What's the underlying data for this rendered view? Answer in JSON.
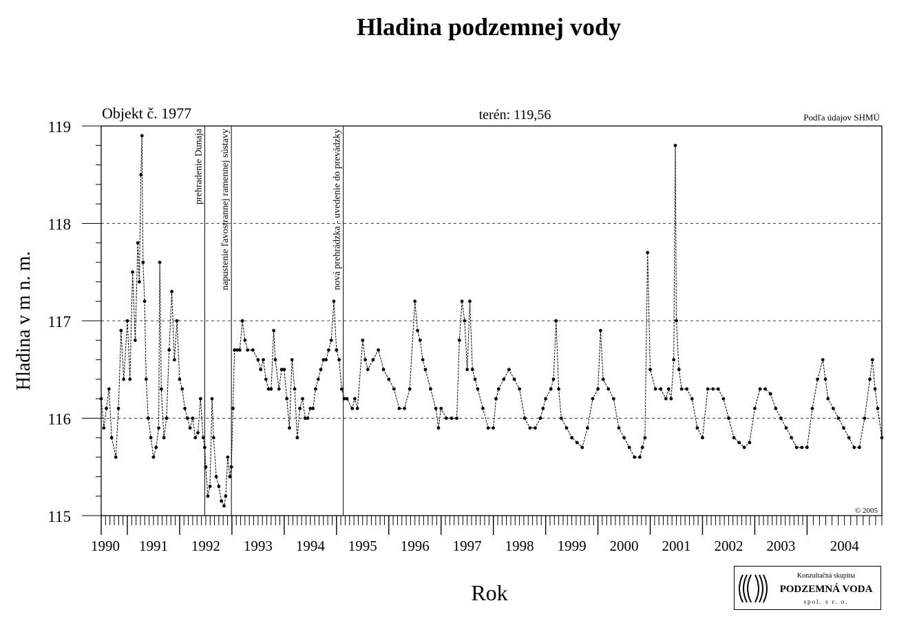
{
  "page": {
    "title": "Hladina podzemnej vody",
    "object_label": "Objekt č. 1977",
    "terrain_label": "terén: 119,56",
    "source_label": "Podľa údajov SHMÚ",
    "copyright": "© 2005",
    "xlabel": "Rok",
    "ylabel": "Hladina v m n. m."
  },
  "logo": {
    "line1": "Konzultačná skupina",
    "name": "PODZEMNÁ VODA",
    "line2": "spol. s r. o.",
    "icon": "logo-swirl-icon"
  },
  "chart_data": {
    "type": "line",
    "title": "Hladina podzemnej vody",
    "xlabel": "Rok",
    "ylabel": "Hladina v m n. m.",
    "xlim": [
      1990.0,
      2004.93
    ],
    "ylim": [
      115,
      119
    ],
    "yticks": [
      115,
      116,
      117,
      118,
      119
    ],
    "grid": "horizontal dashed at 116, 117, 118",
    "legend": "none",
    "series_color": "#000000",
    "year_ticks": [
      {
        "label": "1990",
        "x": 1990.0
      },
      {
        "label": "1991",
        "x": 1990.5
      },
      {
        "label": "1992",
        "x": 1991.5
      },
      {
        "label": "1993",
        "x": 1992.5
      },
      {
        "label": "1994",
        "x": 1993.5
      },
      {
        "label": "1995",
        "x": 1994.5
      },
      {
        "label": "1996",
        "x": 1995.5
      },
      {
        "label": "1997",
        "x": 1996.5
      },
      {
        "label": "1998",
        "x": 1997.5
      },
      {
        "label": "1999",
        "x": 1998.5
      },
      {
        "label": "2000",
        "x": 1999.5
      },
      {
        "label": "2001",
        "x": 2000.5
      },
      {
        "label": "2002",
        "x": 2001.5
      },
      {
        "label": "2003",
        "x": 2002.5
      },
      {
        "label": "2004",
        "x": 2003.5
      }
    ],
    "events": [
      {
        "x": 1991.98,
        "label": "prehradenie Dunaja"
      },
      {
        "x": 1992.49,
        "label": "napustenie ľavostrannej ramennej sústavy"
      },
      {
        "x": 1994.63,
        "label": "nová prehrádzka - uvedenie do prevádzky"
      }
    ],
    "series": [
      {
        "values": [
          [
            1990.0,
            116.2
          ],
          [
            1990.05,
            115.9
          ],
          [
            1990.1,
            116.1
          ],
          [
            1990.15,
            116.3
          ],
          [
            1990.2,
            115.8
          ],
          [
            1990.28,
            115.6
          ],
          [
            1990.33,
            116.1
          ],
          [
            1990.38,
            116.9
          ],
          [
            1990.43,
            116.4
          ],
          [
            1990.5,
            117.0
          ],
          [
            1990.55,
            116.4
          ],
          [
            1990.6,
            117.5
          ],
          [
            1990.65,
            116.8
          ],
          [
            1990.7,
            117.8
          ],
          [
            1990.73,
            117.4
          ],
          [
            1990.76,
            118.5
          ],
          [
            1990.78,
            118.9
          ],
          [
            1990.8,
            117.6
          ],
          [
            1990.83,
            117.2
          ],
          [
            1990.86,
            116.4
          ],
          [
            1990.9,
            116.0
          ],
          [
            1990.95,
            115.8
          ],
          [
            1991.0,
            115.6
          ],
          [
            1991.05,
            115.7
          ],
          [
            1991.1,
            115.9
          ],
          [
            1991.12,
            117.6
          ],
          [
            1991.15,
            116.3
          ],
          [
            1991.2,
            115.8
          ],
          [
            1991.25,
            116.0
          ],
          [
            1991.3,
            116.7
          ],
          [
            1991.35,
            117.3
          ],
          [
            1991.4,
            116.6
          ],
          [
            1991.45,
            117.0
          ],
          [
            1991.5,
            116.4
          ],
          [
            1991.55,
            116.3
          ],
          [
            1991.6,
            116.1
          ],
          [
            1991.65,
            116.0
          ],
          [
            1991.7,
            115.9
          ],
          [
            1991.75,
            116.0
          ],
          [
            1991.8,
            115.8
          ],
          [
            1991.85,
            115.85
          ],
          [
            1991.9,
            116.2
          ],
          [
            1991.95,
            115.8
          ],
          [
            1991.98,
            115.7
          ],
          [
            1992.0,
            115.5
          ],
          [
            1992.04,
            115.2
          ],
          [
            1992.08,
            115.3
          ],
          [
            1992.12,
            116.2
          ],
          [
            1992.15,
            115.8
          ],
          [
            1992.2,
            115.4
          ],
          [
            1992.25,
            115.3
          ],
          [
            1992.3,
            115.15
          ],
          [
            1992.35,
            115.1
          ],
          [
            1992.38,
            115.2
          ],
          [
            1992.42,
            115.6
          ],
          [
            1992.46,
            115.4
          ],
          [
            1992.49,
            115.5
          ],
          [
            1992.52,
            116.1
          ],
          [
            1992.55,
            116.7
          ],
          [
            1992.6,
            116.7
          ],
          [
            1992.65,
            116.7
          ],
          [
            1992.7,
            117.0
          ],
          [
            1992.75,
            116.8
          ],
          [
            1992.8,
            116.7
          ],
          [
            1992.9,
            116.7
          ],
          [
            1993.0,
            116.6
          ],
          [
            1993.05,
            116.5
          ],
          [
            1993.1,
            116.6
          ],
          [
            1993.15,
            116.4
          ],
          [
            1993.2,
            116.3
          ],
          [
            1993.25,
            116.3
          ],
          [
            1993.3,
            116.9
          ],
          [
            1993.33,
            116.6
          ],
          [
            1993.4,
            116.3
          ],
          [
            1993.45,
            116.5
          ],
          [
            1993.5,
            116.5
          ],
          [
            1993.55,
            116.2
          ],
          [
            1993.6,
            115.9
          ],
          [
            1993.65,
            116.6
          ],
          [
            1993.7,
            116.3
          ],
          [
            1993.75,
            115.8
          ],
          [
            1993.8,
            116.1
          ],
          [
            1993.85,
            116.2
          ],
          [
            1993.9,
            116.0
          ],
          [
            1993.95,
            116.0
          ],
          [
            1994.0,
            116.1
          ],
          [
            1994.05,
            116.1
          ],
          [
            1994.1,
            116.3
          ],
          [
            1994.15,
            116.4
          ],
          [
            1994.2,
            116.5
          ],
          [
            1994.25,
            116.6
          ],
          [
            1994.3,
            116.6
          ],
          [
            1994.35,
            116.7
          ],
          [
            1994.4,
            116.8
          ],
          [
            1994.45,
            117.2
          ],
          [
            1994.5,
            116.7
          ],
          [
            1994.55,
            116.6
          ],
          [
            1994.6,
            116.3
          ],
          [
            1994.65,
            116.2
          ],
          [
            1994.7,
            116.2
          ],
          [
            1994.8,
            116.1
          ],
          [
            1994.85,
            116.2
          ],
          [
            1994.9,
            116.1
          ],
          [
            1995.0,
            116.8
          ],
          [
            1995.05,
            116.6
          ],
          [
            1995.1,
            116.5
          ],
          [
            1995.2,
            116.6
          ],
          [
            1995.3,
            116.7
          ],
          [
            1995.4,
            116.5
          ],
          [
            1995.5,
            116.4
          ],
          [
            1995.6,
            116.3
          ],
          [
            1995.7,
            116.1
          ],
          [
            1995.8,
            116.1
          ],
          [
            1995.9,
            116.3
          ],
          [
            1996.0,
            117.2
          ],
          [
            1996.05,
            116.9
          ],
          [
            1996.1,
            116.8
          ],
          [
            1996.15,
            116.6
          ],
          [
            1996.2,
            116.5
          ],
          [
            1996.3,
            116.3
          ],
          [
            1996.4,
            116.1
          ],
          [
            1996.45,
            115.9
          ],
          [
            1996.5,
            116.1
          ],
          [
            1996.6,
            116.0
          ],
          [
            1996.7,
            116.0
          ],
          [
            1996.8,
            116.0
          ],
          [
            1996.85,
            116.8
          ],
          [
            1996.9,
            117.2
          ],
          [
            1996.95,
            117.0
          ],
          [
            1997.0,
            116.5
          ],
          [
            1997.05,
            117.2
          ],
          [
            1997.1,
            116.5
          ],
          [
            1997.15,
            116.4
          ],
          [
            1997.2,
            116.3
          ],
          [
            1997.3,
            116.1
          ],
          [
            1997.4,
            115.9
          ],
          [
            1997.5,
            115.9
          ],
          [
            1997.55,
            116.2
          ],
          [
            1997.6,
            116.3
          ],
          [
            1997.7,
            116.4
          ],
          [
            1997.8,
            116.5
          ],
          [
            1997.9,
            116.4
          ],
          [
            1998.0,
            116.3
          ],
          [
            1998.1,
            116.0
          ],
          [
            1998.2,
            115.9
          ],
          [
            1998.3,
            115.9
          ],
          [
            1998.4,
            116.0
          ],
          [
            1998.45,
            116.1
          ],
          [
            1998.5,
            116.2
          ],
          [
            1998.6,
            116.3
          ],
          [
            1998.65,
            116.4
          ],
          [
            1998.7,
            117.0
          ],
          [
            1998.75,
            116.3
          ],
          [
            1998.8,
            116.0
          ],
          [
            1998.9,
            115.9
          ],
          [
            1999.0,
            115.8
          ],
          [
            1999.1,
            115.75
          ],
          [
            1999.2,
            115.7
          ],
          [
            1999.3,
            115.9
          ],
          [
            1999.4,
            116.2
          ],
          [
            1999.5,
            116.3
          ],
          [
            1999.55,
            116.9
          ],
          [
            1999.6,
            116.4
          ],
          [
            1999.7,
            116.3
          ],
          [
            1999.8,
            116.2
          ],
          [
            1999.9,
            115.9
          ],
          [
            2000.0,
            115.8
          ],
          [
            2000.1,
            115.7
          ],
          [
            2000.2,
            115.6
          ],
          [
            2000.3,
            115.6
          ],
          [
            2000.35,
            115.7
          ],
          [
            2000.4,
            115.8
          ],
          [
            2000.45,
            117.7
          ],
          [
            2000.5,
            116.5
          ],
          [
            2000.6,
            116.3
          ],
          [
            2000.7,
            116.3
          ],
          [
            2000.8,
            116.2
          ],
          [
            2000.85,
            116.3
          ],
          [
            2000.9,
            116.2
          ],
          [
            2000.95,
            116.6
          ],
          [
            2000.98,
            118.8
          ],
          [
            2001.0,
            117.0
          ],
          [
            2001.05,
            116.5
          ],
          [
            2001.1,
            116.3
          ],
          [
            2001.2,
            116.3
          ],
          [
            2001.3,
            116.2
          ],
          [
            2001.4,
            115.9
          ],
          [
            2001.5,
            115.8
          ],
          [
            2001.6,
            116.3
          ],
          [
            2001.7,
            116.3
          ],
          [
            2001.8,
            116.3
          ],
          [
            2001.9,
            116.2
          ],
          [
            2002.0,
            116.0
          ],
          [
            2002.1,
            115.8
          ],
          [
            2002.2,
            115.75
          ],
          [
            2002.3,
            115.7
          ],
          [
            2002.4,
            115.75
          ],
          [
            2002.5,
            116.1
          ],
          [
            2002.6,
            116.3
          ],
          [
            2002.7,
            116.3
          ],
          [
            2002.8,
            116.25
          ],
          [
            2002.9,
            116.1
          ],
          [
            2003.0,
            116.0
          ],
          [
            2003.1,
            115.9
          ],
          [
            2003.2,
            115.8
          ],
          [
            2003.3,
            115.7
          ],
          [
            2003.4,
            115.7
          ],
          [
            2003.5,
            115.7
          ],
          [
            2003.6,
            116.1
          ],
          [
            2003.7,
            116.4
          ],
          [
            2003.8,
            116.6
          ],
          [
            2003.85,
            116.4
          ],
          [
            2003.9,
            116.2
          ],
          [
            2004.0,
            116.1
          ],
          [
            2004.1,
            116.0
          ],
          [
            2004.2,
            115.9
          ],
          [
            2004.3,
            115.8
          ],
          [
            2004.4,
            115.7
          ],
          [
            2004.5,
            115.7
          ],
          [
            2004.6,
            116.0
          ],
          [
            2004.7,
            116.4
          ],
          [
            2004.75,
            116.6
          ],
          [
            2004.8,
            116.3
          ],
          [
            2004.85,
            116.1
          ],
          [
            2004.93,
            115.8
          ]
        ]
      }
    ]
  }
}
